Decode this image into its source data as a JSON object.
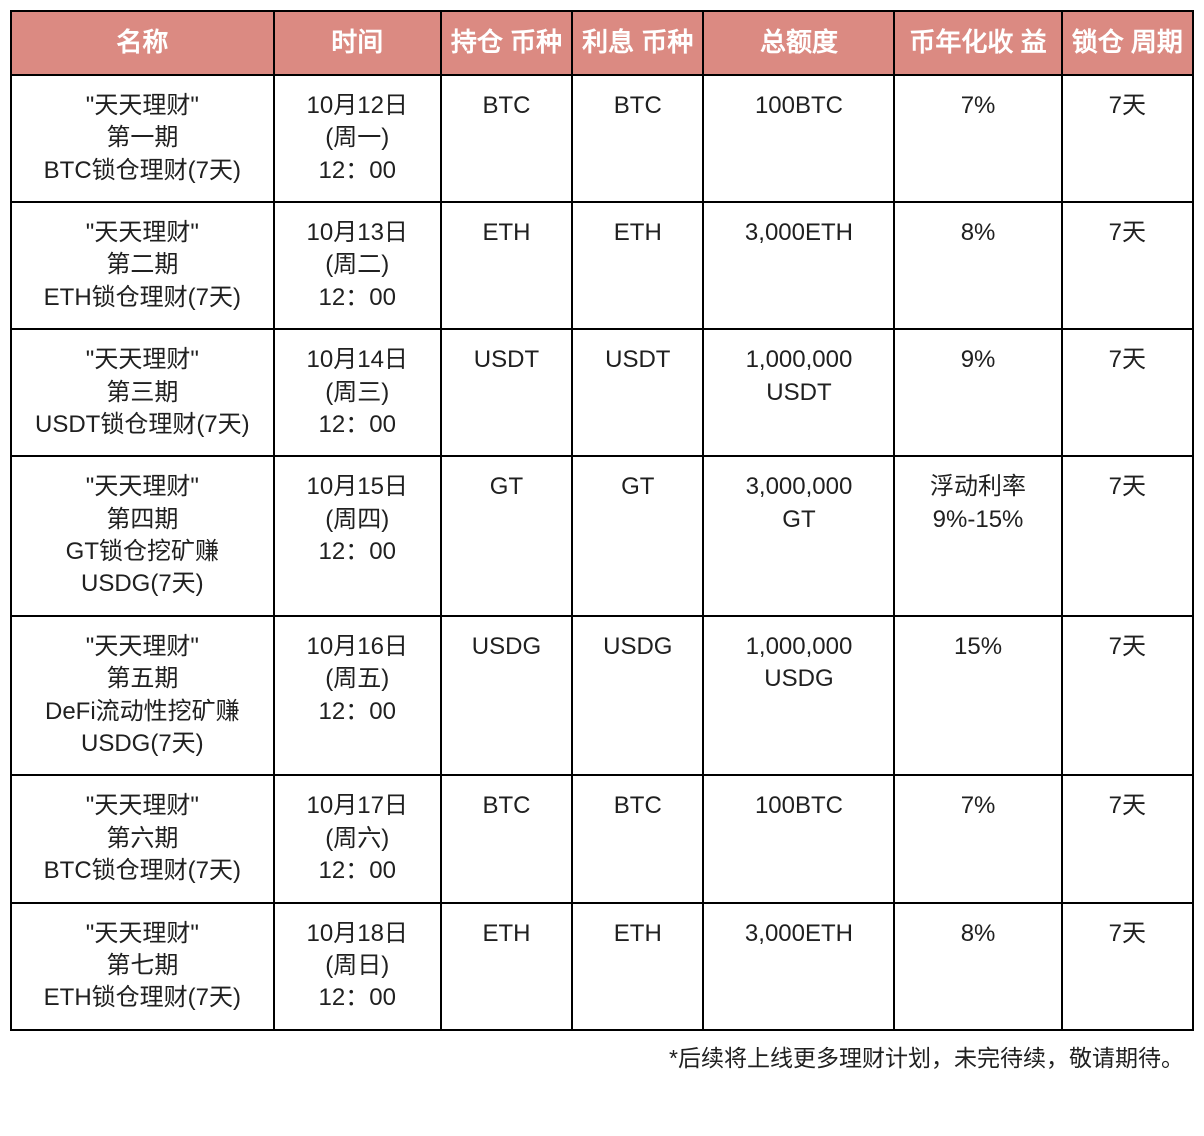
{
  "table": {
    "header_bg": "#db8a82",
    "header_fg": "#ffffff",
    "border_color": "#000000",
    "cell_fg": "#202020",
    "header_fontsize": 26,
    "cell_fontsize": 24,
    "columns": [
      {
        "key": "name",
        "label": "名称",
        "width_pct": 22
      },
      {
        "key": "time",
        "label": "时间",
        "width_pct": 14
      },
      {
        "key": "hold",
        "label": "持仓\n币种",
        "width_pct": 11
      },
      {
        "key": "int",
        "label": "利息\n币种",
        "width_pct": 11
      },
      {
        "key": "quota",
        "label": "总额度",
        "width_pct": 16
      },
      {
        "key": "apy",
        "label": "币年化收\n益",
        "width_pct": 14
      },
      {
        "key": "lock",
        "label": "锁仓\n周期",
        "width_pct": 11
      }
    ],
    "rows": [
      {
        "name": "\"天天理财\"\n第一期\nBTC锁仓理财(7天)",
        "time": "10月12日\n(周一)\n12：00",
        "hold": "BTC",
        "int": "BTC",
        "quota": "100BTC",
        "apy": "7%",
        "lock": "7天"
      },
      {
        "name": "\"天天理财\"\n第二期\nETH锁仓理财(7天)",
        "time": "10月13日\n(周二)\n12：00",
        "hold": "ETH",
        "int": "ETH",
        "quota": "3,000ETH",
        "apy": "8%",
        "lock": "7天"
      },
      {
        "name": "\"天天理财\"\n第三期\nUSDT锁仓理财(7天)",
        "time": "10月14日\n(周三)\n12：00",
        "hold": "USDT",
        "int": "USDT",
        "quota": "1,000,000\nUSDT",
        "apy": "9%",
        "lock": "7天"
      },
      {
        "name": "\"天天理财\"\n第四期\nGT锁仓挖矿赚\nUSDG(7天)",
        "time": "10月15日\n(周四)\n12：00",
        "hold": "GT",
        "int": "GT",
        "quota": "3,000,000\nGT",
        "apy": "浮动利率\n9%-15%",
        "lock": "7天"
      },
      {
        "name": "\"天天理财\"\n第五期\nDeFi流动性挖矿赚\nUSDG(7天)",
        "time": "10月16日\n(周五)\n12：00",
        "hold": "USDG",
        "int": "USDG",
        "quota": "1,000,000\nUSDG",
        "apy": "15%",
        "lock": "7天"
      },
      {
        "name": "\"天天理财\"\n第六期\nBTC锁仓理财(7天)",
        "time": "10月17日\n(周六)\n12：00",
        "hold": "BTC",
        "int": "BTC",
        "quota": "100BTC",
        "apy": "7%",
        "lock": "7天"
      },
      {
        "name": "\"天天理财\"\n第七期\nETH锁仓理财(7天)",
        "time": "10月18日\n(周日)\n12：00",
        "hold": "ETH",
        "int": "ETH",
        "quota": "3,000ETH",
        "apy": "8%",
        "lock": "7天"
      }
    ]
  },
  "footnote": "*后续将上线更多理财计划，未完待续，敬请期待。"
}
